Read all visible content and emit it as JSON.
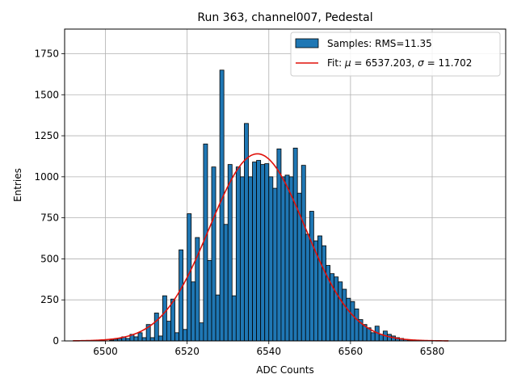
{
  "chart_data": {
    "type": "bar",
    "title": "Run 363, channel007, Pedestal",
    "xlabel": "ADC Counts",
    "ylabel": "Entries",
    "xlim": [
      6490,
      6598
    ],
    "ylim": [
      0,
      1900
    ],
    "xticks": [
      6500,
      6520,
      6540,
      6560,
      6580
    ],
    "yticks": [
      0,
      250,
      500,
      750,
      1000,
      1250,
      1500,
      1750
    ],
    "grid": true,
    "legend_position": "top-right",
    "bin_width": 1,
    "bin_start": 6501,
    "series": [
      {
        "name": "Samples: RMS=11.35",
        "kind": "histogram",
        "color": "#1f77b4",
        "edgecolor": "#000000",
        "values": [
          5,
          10,
          15,
          25,
          15,
          40,
          25,
          50,
          20,
          100,
          20,
          170,
          30,
          275,
          120,
          255,
          50,
          555,
          70,
          775,
          360,
          630,
          110,
          1200,
          490,
          1060,
          280,
          1650,
          710,
          1075,
          275,
          1060,
          1000,
          1325,
          1000,
          1090,
          1100,
          1075,
          1080,
          1000,
          930,
          1170,
          1000,
          1010,
          1000,
          1175,
          900,
          1070,
          650,
          790,
          610,
          640,
          580,
          460,
          410,
          390,
          360,
          315,
          260,
          240,
          195,
          130,
          100,
          80,
          50,
          90,
          40,
          60,
          40,
          30,
          20,
          15,
          10,
          5
        ]
      },
      {
        "name": "Fit: μ = 6537.203, σ = 11.702",
        "kind": "gaussian_fit",
        "color": "#e0110a",
        "mu": 6537.203,
        "sigma": 11.702,
        "amplitude": 1140,
        "x_range": [
          6492,
          6584
        ]
      }
    ],
    "legend": [
      {
        "label_text": "Samples: RMS=11.35"
      },
      {
        "label_prefix": "Fit: ",
        "mu_symbol": "μ",
        "mu_text": " = 6537.203, ",
        "sigma_symbol": "σ",
        "sigma_text": " = 11.702"
      }
    ]
  }
}
